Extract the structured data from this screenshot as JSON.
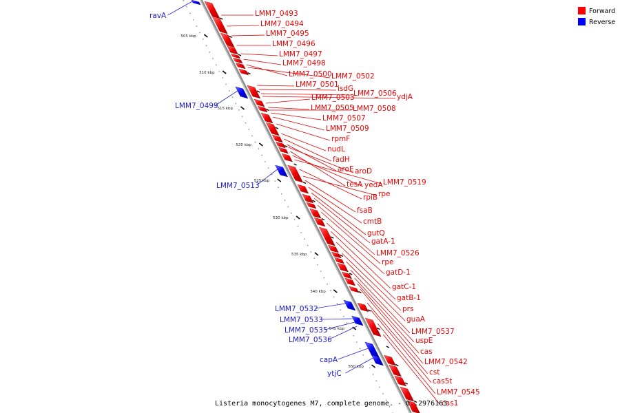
{
  "caption": "Listeria monocytogenes M7, complete genome. - 0..2976163",
  "legend": [
    {
      "label": "Forward",
      "color": "#ff0000"
    },
    {
      "label": "Reverse",
      "color": "#0000ff"
    }
  ],
  "ticks": [
    "505 kbp",
    "510 kbp",
    "515 kbp",
    "520 kbp",
    "525 kbp",
    "530 kbp",
    "535 kbp",
    "540 kbp",
    "545 kbp",
    "550 kbp"
  ],
  "forward_labels": [
    "LMM7_0493",
    "LMM7_0494",
    "LMM7_0495",
    "LMM7_0496",
    "LMM7_0497",
    "LMM7_0498",
    "LMM7_0500",
    "LMM7_0502",
    "LMM7_0501",
    "isdG",
    "LMM7_0506",
    "ydjA",
    "LMM7_0503",
    "LMM7_0505",
    "LMM7_0508",
    "LMM7_0507",
    "LMM7_0509",
    "rpmF",
    "nudL",
    "fadH",
    "aroE",
    "aroD",
    "tesA",
    "yedA",
    "LMM7_0519",
    "rpiB",
    "rpe",
    "fsaB",
    "cmtB",
    "gutQ",
    "gatA-1",
    "LMM7_0526",
    "rpe",
    "gatD-1",
    "gatC-1",
    "gatB-1",
    "prs",
    "guaA",
    "LMM7_0537",
    "uspE",
    "cas",
    "LMM7_0542",
    "cst",
    "cas5t",
    "LMM7_0545",
    "cas1"
  ],
  "reverse_labels": [
    "ravA",
    "LMM7_0499",
    "LMM7_0513",
    "LMM7_0532",
    "LMM7_0533",
    "LMM7_0535",
    "LMM7_0536",
    "capA",
    "ytjC"
  ]
}
